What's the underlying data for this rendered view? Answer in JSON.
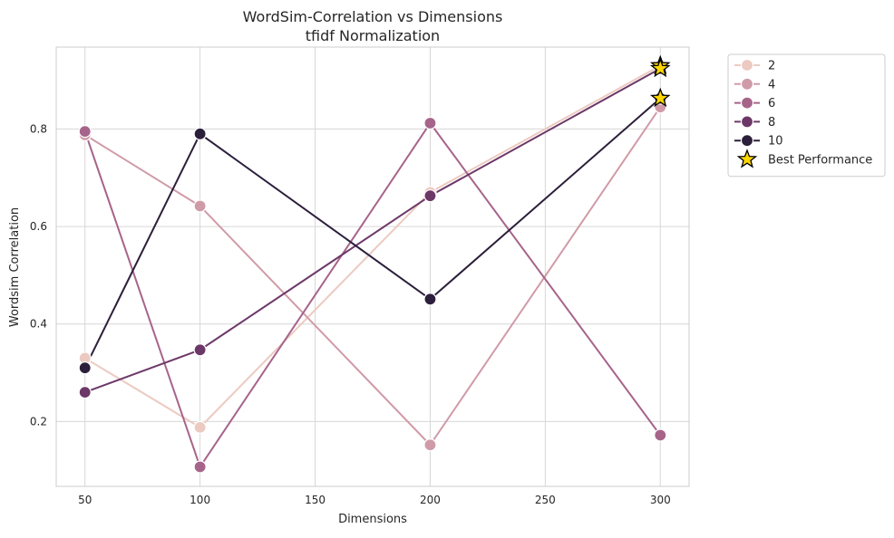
{
  "chart_data": {
    "type": "line",
    "title": "WordSim-Correlation vs Dimensions",
    "subtitle": "tfidf Normalization",
    "xlabel": "Dimensions",
    "ylabel": "Wordsim Correlation",
    "x_ticks": [
      50,
      100,
      150,
      200,
      250,
      300
    ],
    "y_ticks": [
      0.2,
      0.4,
      0.6,
      0.8
    ],
    "xlim": [
      37.5,
      312.5
    ],
    "ylim": [
      0.067,
      0.968
    ],
    "grid": true,
    "legend_position": "outside-right-top",
    "x": [
      50,
      100,
      200,
      300
    ],
    "series": [
      {
        "name": "2",
        "color": "#eccac1",
        "values": [
          0.33,
          0.188,
          0.67,
          0.93
        ]
      },
      {
        "name": "4",
        "color": "#d09ba8",
        "values": [
          0.788,
          0.642,
          0.152,
          0.845
        ]
      },
      {
        "name": "6",
        "color": "#a7648a",
        "values": [
          0.795,
          0.107,
          0.812,
          0.172
        ]
      },
      {
        "name": "8",
        "color": "#6c3868",
        "values": [
          0.26,
          0.347,
          0.663,
          0.924
        ]
      },
      {
        "name": "10",
        "color": "#2c1f3b",
        "values": [
          0.31,
          0.79,
          0.451,
          0.863
        ]
      }
    ],
    "best_performance": {
      "label": "Best Performance",
      "color": "#ffd700",
      "points": [
        {
          "x": 300,
          "y": 0.93
        },
        {
          "x": 300,
          "y": 0.924
        },
        {
          "x": 300,
          "y": 0.863
        }
      ]
    }
  }
}
